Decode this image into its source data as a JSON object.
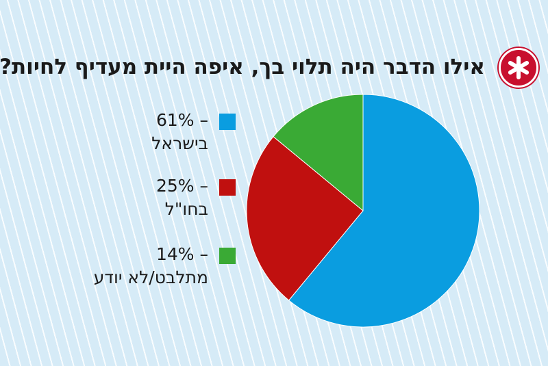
{
  "title": "אילו הדבר היה תלוי בך, איפה היית מעדיף לחיות?",
  "badge_icon": "asterisk-icon",
  "colors": {
    "badge": "#c8102e",
    "israel": "#0a9de0",
    "abroad": "#c0100f",
    "undecided": "#3aaa35"
  },
  "chart_data": {
    "type": "pie",
    "title": "אילו הדבר היה תלוי בך, איפה היית מעדיף לחיות?",
    "legend_position": "left",
    "slices": [
      {
        "label": "בישראל",
        "value": 61,
        "value_text": "61% –",
        "color": "#0a9de0"
      },
      {
        "label": "בחו\"ל",
        "value": 25,
        "value_text": "25% –",
        "color": "#c0100f"
      },
      {
        "label": "מתלבט/לא יודע",
        "value": 14,
        "value_text": "14% –",
        "color": "#3aaa35"
      }
    ]
  }
}
